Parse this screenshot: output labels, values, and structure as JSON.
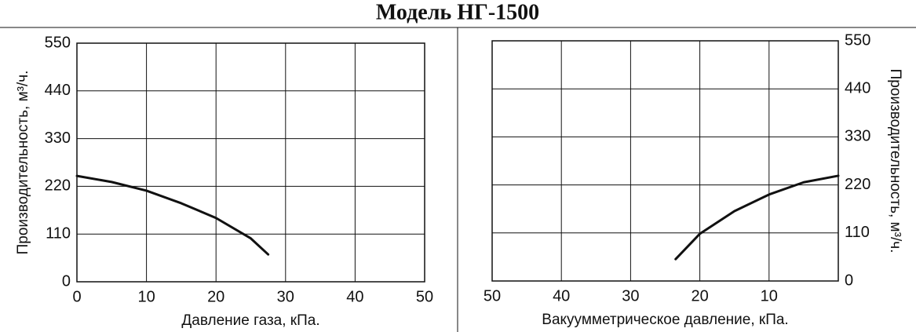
{
  "title": "Модель НГ-1500",
  "chart_data": [
    {
      "type": "line",
      "xlabel": "Давление газа, кПа.",
      "ylabel": "Производительность, м³/ч.",
      "x": [
        0,
        5,
        10,
        15,
        20,
        25,
        27.5
      ],
      "values": [
        244,
        230,
        210,
        181,
        147,
        100,
        63
      ],
      "color": "#111111",
      "xlim": [
        0,
        50
      ],
      "xticks": [
        0,
        10,
        20,
        30,
        40,
        50
      ],
      "ylim": [
        0,
        550
      ],
      "yticks": [
        0,
        110,
        220,
        330,
        440,
        550
      ],
      "grid": true,
      "yaxis_position": "left"
    },
    {
      "type": "line",
      "xlabel": "Вакуумметрическое давление, кПа.",
      "ylabel": "Производительность, м³/ч.",
      "x": [
        23.5,
        20,
        15,
        10,
        5,
        0
      ],
      "values": [
        50,
        108,
        160,
        198,
        226,
        241
      ],
      "color": "#111111",
      "xlim": [
        50,
        0
      ],
      "xticks": [
        50,
        40,
        30,
        20,
        10
      ],
      "ylim": [
        0,
        550
      ],
      "yticks": [
        0,
        110,
        220,
        330,
        440,
        550
      ],
      "grid": true,
      "yaxis_position": "right"
    }
  ]
}
